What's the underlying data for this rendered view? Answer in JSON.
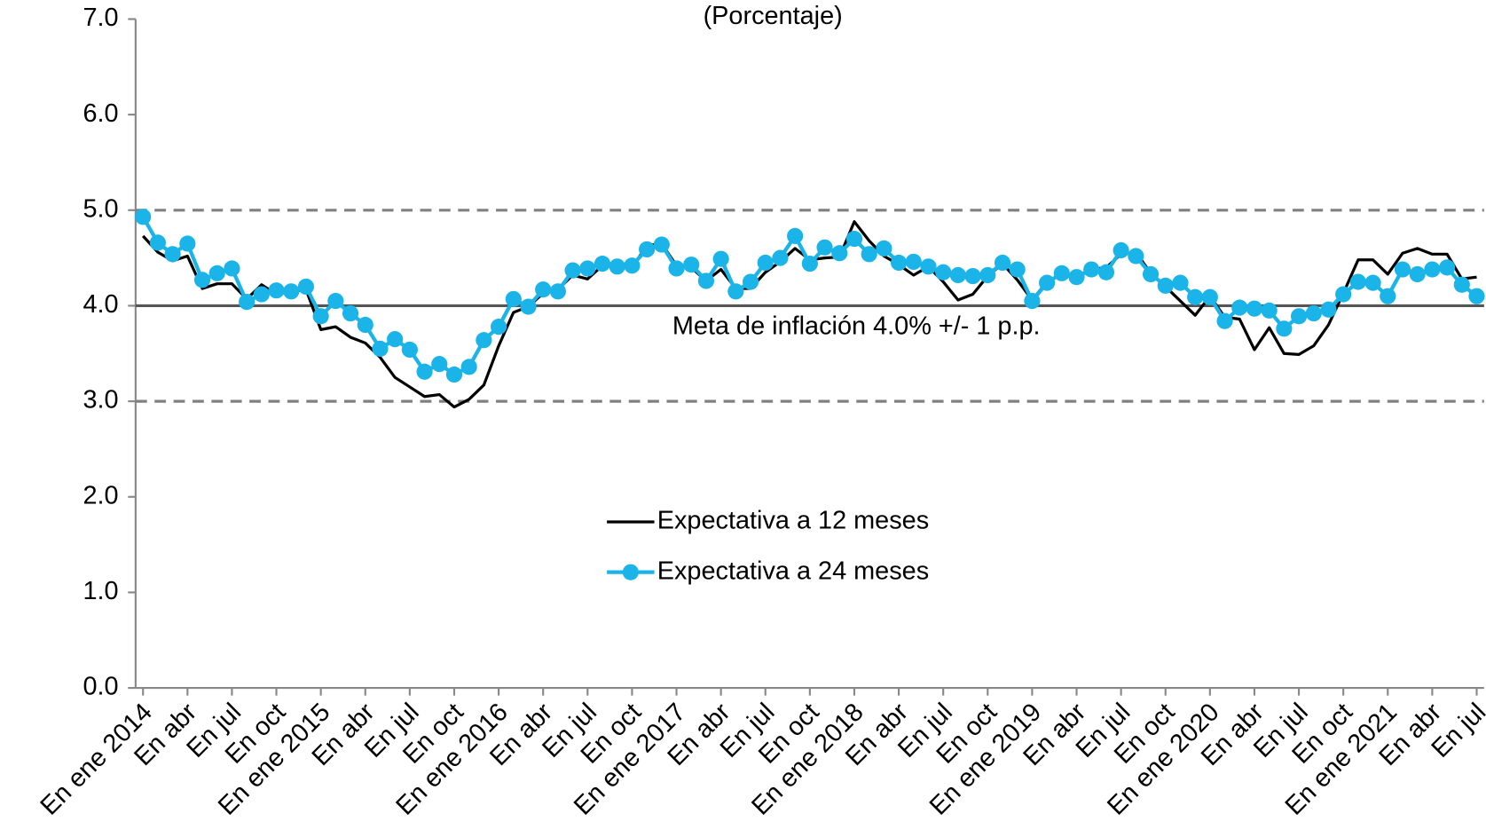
{
  "chart_data": {
    "type": "line",
    "title": "(Porcentaje)",
    "annotation": "Meta de inflación 4.0% +/- 1 p.p.",
    "categories": [
      "En ene 2014",
      null,
      null,
      "En abr",
      null,
      null,
      "En jul",
      null,
      null,
      "En oct",
      null,
      null,
      "En ene 2015",
      null,
      null,
      "En abr",
      null,
      null,
      "En jul",
      null,
      null,
      "En oct",
      null,
      null,
      "En ene 2016",
      null,
      null,
      "En abr",
      null,
      null,
      "En jul",
      null,
      null,
      "En oct",
      null,
      null,
      "En ene 2017",
      null,
      null,
      "En abr",
      null,
      null,
      "En jul",
      null,
      null,
      "En oct",
      null,
      null,
      "En ene 2018",
      null,
      null,
      "En abr",
      null,
      null,
      "En jul",
      null,
      null,
      "En oct",
      null,
      null,
      "En ene 2019",
      null,
      null,
      "En abr",
      null,
      null,
      "En jul",
      null,
      null,
      "En oct",
      null,
      null,
      "En ene 2020",
      null,
      null,
      "En abr",
      null,
      null,
      "En jul",
      null,
      null,
      "En oct",
      null,
      null,
      "En ene 2021",
      null,
      null,
      "En abr",
      null,
      null,
      "En jul"
    ],
    "series": [
      {
        "name": "Expectativa a 12 meses",
        "color": "#000000",
        "markers": false,
        "values": [
          4.73,
          4.56,
          4.47,
          4.52,
          4.18,
          4.23,
          4.23,
          4.07,
          4.22,
          4.12,
          4.15,
          4.17,
          3.75,
          3.78,
          3.67,
          3.61,
          3.46,
          3.25,
          3.15,
          3.05,
          3.07,
          2.94,
          3.02,
          3.17,
          3.58,
          3.93,
          3.99,
          4.13,
          4.17,
          4.32,
          4.28,
          4.42,
          4.43,
          4.4,
          4.63,
          4.65,
          4.42,
          4.4,
          4.26,
          4.38,
          4.18,
          4.18,
          4.35,
          4.46,
          4.6,
          4.48,
          4.5,
          4.51,
          4.88,
          4.68,
          4.52,
          4.43,
          4.32,
          4.41,
          4.25,
          4.06,
          4.12,
          4.31,
          4.44,
          4.27,
          4.06,
          4.25,
          4.33,
          4.31,
          4.38,
          4.4,
          4.54,
          4.56,
          4.34,
          4.2,
          4.05,
          3.9,
          4.1,
          3.88,
          3.86,
          3.54,
          3.77,
          3.5,
          3.49,
          3.58,
          3.8,
          4.13,
          4.48,
          4.48,
          4.33,
          4.55,
          4.6,
          4.54,
          4.54,
          4.28,
          4.3
        ]
      },
      {
        "name": "Expectativa a 24 meses",
        "color": "#1ab4e8",
        "markers": true,
        "values": [
          4.93,
          4.66,
          4.54,
          4.65,
          4.27,
          4.34,
          4.39,
          4.04,
          4.12,
          4.16,
          4.15,
          4.2,
          3.89,
          4.05,
          3.92,
          3.8,
          3.55,
          3.65,
          3.54,
          3.31,
          3.39,
          3.28,
          3.36,
          3.64,
          3.78,
          4.07,
          3.99,
          4.17,
          4.15,
          4.37,
          4.39,
          4.44,
          4.41,
          4.42,
          4.59,
          4.64,
          4.39,
          4.43,
          4.26,
          4.49,
          4.15,
          4.25,
          4.45,
          4.5,
          4.73,
          4.44,
          4.61,
          4.55,
          4.7,
          4.54,
          4.6,
          4.45,
          4.46,
          4.41,
          4.35,
          4.32,
          4.31,
          4.32,
          4.45,
          4.38,
          4.05,
          4.24,
          4.34,
          4.3,
          4.38,
          4.35,
          4.58,
          4.52,
          4.33,
          4.21,
          4.24,
          4.09,
          4.09,
          3.84,
          3.98,
          3.97,
          3.95,
          3.76,
          3.89,
          3.92,
          3.96,
          4.12,
          4.25,
          4.24,
          4.1,
          4.38,
          4.33,
          4.38,
          4.4,
          4.22,
          4.1
        ]
      }
    ],
    "ylim": [
      0,
      7
    ],
    "yticks": [
      {
        "value": 0,
        "label": "0.0"
      },
      {
        "value": 1,
        "label": "1.0"
      },
      {
        "value": 2,
        "label": "2.0"
      },
      {
        "value": 3,
        "label": "3.0"
      },
      {
        "value": 4,
        "label": "4.0"
      },
      {
        "value": 5,
        "label": "5.0"
      },
      {
        "value": 6,
        "label": "6.0"
      },
      {
        "value": 7,
        "label": "7.0"
      }
    ],
    "reference_lines": [
      {
        "value": 5,
        "style": "dashed"
      },
      {
        "value": 4,
        "style": "solid"
      },
      {
        "value": 3,
        "style": "dashed"
      }
    ],
    "grid": false,
    "legend": "center"
  }
}
